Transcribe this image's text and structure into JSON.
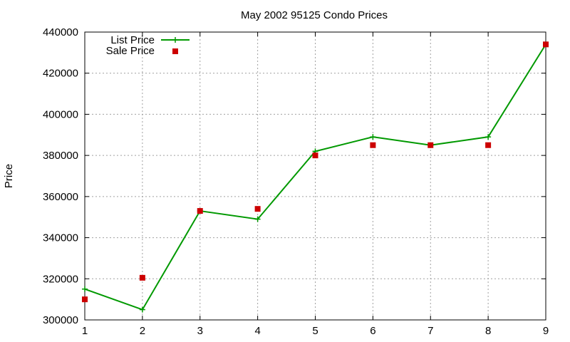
{
  "chart_data": {
    "type": "line",
    "title": "May 2002 95125 Condo Prices",
    "xlabel": "",
    "ylabel": "Price",
    "x": [
      1,
      2,
      3,
      4,
      5,
      6,
      7,
      8,
      9
    ],
    "xlim": [
      1,
      9
    ],
    "ylim": [
      300000,
      440000
    ],
    "xticks": [
      1,
      2,
      3,
      4,
      5,
      6,
      7,
      8,
      9
    ],
    "yticks": [
      300000,
      320000,
      340000,
      360000,
      380000,
      400000,
      420000,
      440000
    ],
    "grid": true,
    "legend_position": "top-left",
    "series": [
      {
        "name": "List Price",
        "style": "linespoints",
        "marker": "plus",
        "color": "#009900",
        "values": [
          315000,
          305000,
          353000,
          349000,
          382000,
          389000,
          385000,
          389000,
          434000
        ]
      },
      {
        "name": "Sale Price",
        "style": "points",
        "marker": "square",
        "color": "#cc0000",
        "values": [
          310000,
          320500,
          353000,
          354000,
          380000,
          385000,
          385000,
          385000,
          434000
        ]
      }
    ]
  }
}
